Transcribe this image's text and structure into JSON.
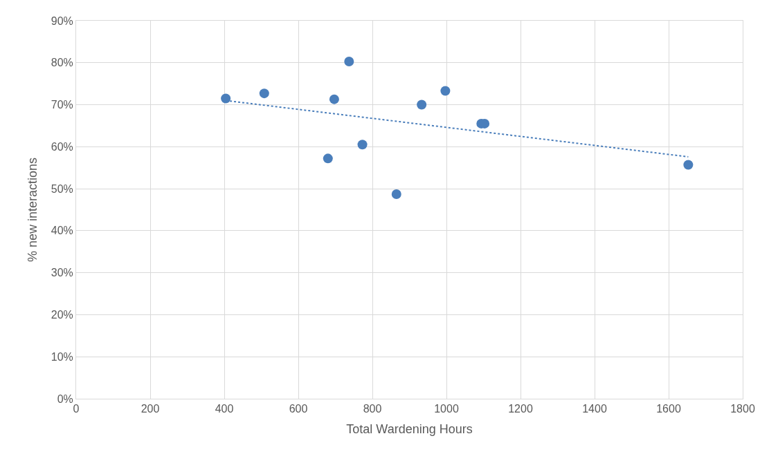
{
  "chart_data": {
    "type": "scatter",
    "xlabel": "Total Wardening Hours",
    "ylabel": "% new interactions",
    "series": [
      {
        "color": "#4a7ebb",
        "marker": "circle",
        "x": [
          404,
          508,
          737,
          697,
          680,
          773,
          865,
          933,
          997,
          1094,
          1103,
          1653
        ],
        "values": [
          71.5,
          72.7,
          80.3,
          71.3,
          57.2,
          60.5,
          48.7,
          70.0,
          73.3,
          65.5,
          65.5,
          55.7
        ]
      },
      {
        "type": "line",
        "color": "#4a7ebb",
        "marker": "none",
        "line_style": "dotted",
        "x": [
          404,
          1653
        ],
        "values": [
          71.0,
          57.6
        ]
      }
    ],
    "xlim": [
      0,
      1800
    ],
    "xticks": [
      0,
      200,
      400,
      600,
      800,
      1000,
      1200,
      1400,
      1600,
      1800
    ],
    "ylim": [
      0,
      90
    ],
    "yticks": [
      {
        "value": 0,
        "label": "0%"
      },
      {
        "value": 10,
        "label": "10%"
      },
      {
        "value": 20,
        "label": "20%"
      },
      {
        "value": 30,
        "label": "30%"
      },
      {
        "value": 40,
        "label": "40%"
      },
      {
        "value": 50,
        "label": "50%"
      },
      {
        "value": 60,
        "label": "60%"
      },
      {
        "value": 70,
        "label": "70%"
      },
      {
        "value": 80,
        "label": "80%"
      },
      {
        "value": 90,
        "label": "90%"
      }
    ],
    "grid": true
  }
}
